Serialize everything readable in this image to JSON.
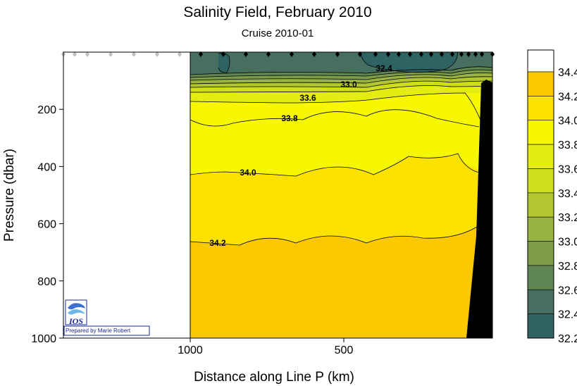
{
  "chart_data": {
    "type": "contour",
    "title": "Salinity Field,  February 2010",
    "subtitle": "Cruise 2010-01",
    "xlabel": "Distance along Line P  (km)",
    "ylabel": "Pressure  (dbar)",
    "x_ticks": [
      1000,
      500
    ],
    "y_ticks": [
      200,
      400,
      600,
      800,
      1000
    ],
    "ylim": [
      0,
      1000
    ],
    "y_inverted": true,
    "x_reversed": true,
    "colorbar": {
      "levels": [
        32.2,
        32.4,
        32.6,
        32.8,
        33.0,
        33.2,
        33.4,
        33.6,
        33.8,
        34.0,
        34.2,
        34.4
      ],
      "tick_labels": [
        "32.2",
        "32.4",
        "32.6",
        "32.8",
        "33.0",
        "33.2",
        "33.4",
        "33.6",
        "33.8",
        "34.0",
        "34.2",
        "34.4"
      ],
      "colors": [
        "#2f6263",
        "#476f60",
        "#5f8553",
        "#7c9c4a",
        "#98b33f",
        "#b3c52f",
        "#cede1d",
        "#e4ec12",
        "#f7f700",
        "#fde200",
        "#fcc900",
        "#ffffff"
      ]
    },
    "contour_labels": [
      "32.4",
      "33.0",
      "33.6",
      "33.8",
      "34.0",
      "34.2"
    ],
    "colors": {
      "background": "#ffffff",
      "no_data": "#ffffff",
      "bathymetry": "#000000",
      "station_marker": "#000000",
      "station_marker_unsampled": "#c0c0c0"
    }
  },
  "credit": {
    "logo_text": "IOS",
    "prepared_by": "Prepared by Marie Robert"
  }
}
